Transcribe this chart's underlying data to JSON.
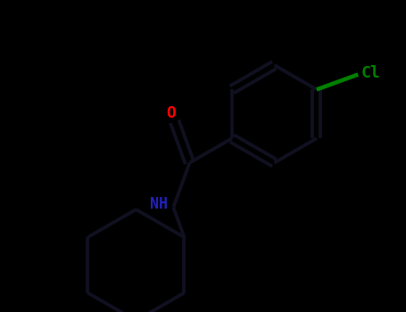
{
  "background_color": "#000000",
  "bond_color": "#101020",
  "bond_width": 2.8,
  "O_color": "#ff0000",
  "N_color": "#2222bb",
  "Cl_color": "#008000",
  "figsize": [
    4.55,
    3.5
  ],
  "dpi": 100,
  "xlim": [
    -2.8,
    2.8
  ],
  "ylim": [
    -2.2,
    2.4
  ]
}
